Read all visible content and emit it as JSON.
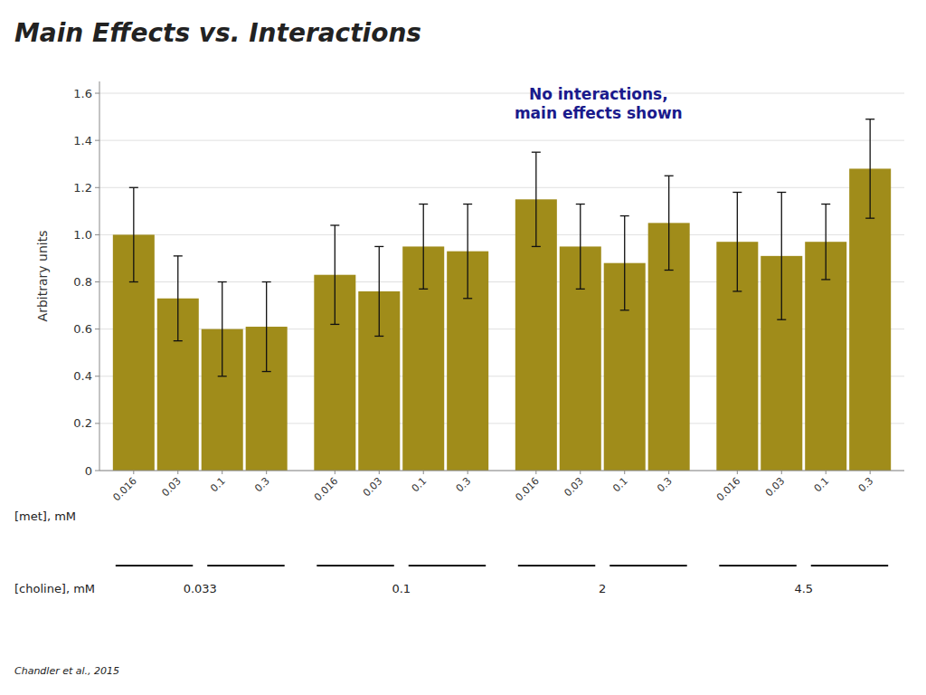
{
  "chart_data": {
    "type": "bar",
    "title": "Main Effects vs. Interactions",
    "annotation": "No interactions,\nmain effects shown",
    "ylabel": "Arbitrary units",
    "xlabel": "[met], mM",
    "group_label": "[choline], mM",
    "citation": "Chandler et al., 2015",
    "categories": [
      "0.033",
      "0.1",
      "2",
      "4.5"
    ],
    "series": [
      {
        "name": "0.016",
        "color": "#a08c1a",
        "values": [
          1.0,
          0.83,
          1.15,
          0.97
        ],
        "errors": [
          0.2,
          0.21,
          0.2,
          0.21
        ]
      },
      {
        "name": "0.03",
        "color": "#a08c1a",
        "values": [
          0.73,
          0.76,
          0.95,
          0.91
        ],
        "errors": [
          0.18,
          0.19,
          0.18,
          0.27
        ]
      },
      {
        "name": "0.1",
        "color": "#a08c1a",
        "values": [
          0.6,
          0.95,
          0.88,
          0.97
        ],
        "errors": [
          0.2,
          0.18,
          0.2,
          0.16
        ]
      },
      {
        "name": "0.3",
        "color": "#a08c1a",
        "values": [
          0.61,
          0.93,
          1.05,
          1.28
        ],
        "errors": [
          0.19,
          0.2,
          0.2,
          0.21
        ]
      }
    ],
    "ylim": [
      0,
      1.65
    ],
    "yticks": [
      0,
      0.2,
      0.4,
      0.6,
      0.8,
      {
        "value": 1.0,
        "label": "1.0"
      },
      1.2,
      1.4,
      1.6
    ],
    "grid": true
  }
}
